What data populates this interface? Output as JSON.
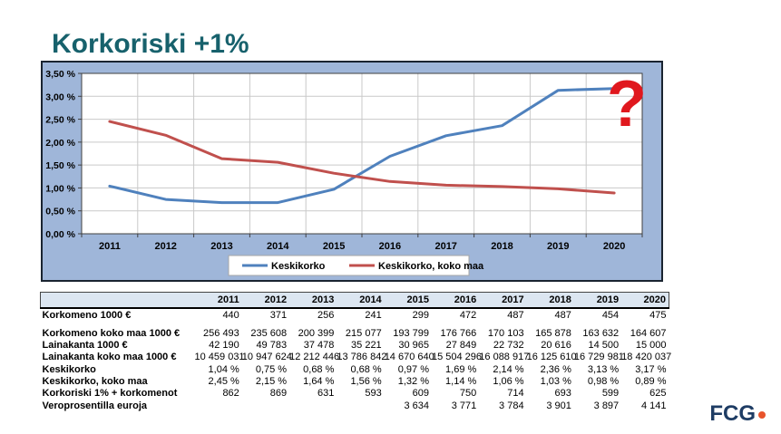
{
  "slide": {
    "title": "Korkoriski +1%",
    "title_color": "#17616C"
  },
  "chart_data": {
    "type": "line",
    "title": "",
    "xlabel": "",
    "ylabel": "",
    "categories": [
      "2011",
      "2012",
      "2013",
      "2014",
      "2015",
      "2016",
      "2017",
      "2018",
      "2019",
      "2020"
    ],
    "series": [
      {
        "name": "Keskikorko",
        "color": "#4F81BD",
        "values": [
          1.04,
          0.75,
          0.68,
          0.68,
          0.97,
          1.69,
          2.14,
          2.36,
          3.13,
          3.17
        ]
      },
      {
        "name": "Keskikorko, koko maa",
        "color": "#C0504D",
        "values": [
          2.45,
          2.15,
          1.64,
          1.56,
          1.32,
          1.14,
          1.06,
          1.03,
          0.98,
          0.89
        ]
      }
    ],
    "ylim": [
      0,
      3.5
    ],
    "ytick_step": 0.5,
    "ytick_labels": [
      "0,00 %",
      "0,50 %",
      "1,00 %",
      "1,50 %",
      "2,00 %",
      "2,50 %",
      "3,00 %",
      "3,50 %"
    ],
    "grid": true,
    "legend_position": "bottom",
    "annotation": {
      "text": "?",
      "color": "#E0181E"
    },
    "colors": {
      "chart_bg": "#9FB6D9",
      "plot_bg": "#FFFFFF",
      "gridline": "#C9C9C9",
      "axis": "#404040",
      "border": "#1A2430",
      "legend_bg": "#FFFFFF",
      "legend_border": "#A6A6A6",
      "text": "#000000"
    }
  },
  "table": {
    "header_fill": "#DCE6F1",
    "col_headers": [
      "2011",
      "2012",
      "2013",
      "2014",
      "2015",
      "2016",
      "2017",
      "2018",
      "2019",
      "2020"
    ],
    "rows": [
      {
        "label": "Korkomeno 1000 €",
        "values": [
          "440",
          "371",
          "256",
          "241",
          "299",
          "472",
          "487",
          "487",
          "454",
          "475"
        ]
      },
      {
        "label": "Korkomeno koko maa 1000 €",
        "values": [
          "256 493",
          "235 608",
          "200 399",
          "215 077",
          "193 799",
          "176 766",
          "170 103",
          "165 878",
          "163 632",
          "164 607"
        ]
      },
      {
        "label": "Lainakanta 1000 €",
        "values": [
          "42 190",
          "49 783",
          "37 478",
          "35 221",
          "30 965",
          "27 849",
          "22 732",
          "20 616",
          "14 500",
          "15 000"
        ]
      },
      {
        "label": "Lainakanta koko maa 1000 €",
        "values": [
          "10 459 031",
          "10 947 624",
          "12 212 446",
          "13 786 842",
          "14 670 640",
          "15 504 296",
          "16 088 917",
          "16 125 610",
          "16 729 981",
          "18 420 037"
        ]
      },
      {
        "label": "Keskikorko",
        "values": [
          "1,04 %",
          "0,75 %",
          "0,68 %",
          "0,68 %",
          "0,97 %",
          "1,69 %",
          "2,14 %",
          "2,36 %",
          "3,13 %",
          "3,17 %"
        ]
      },
      {
        "label": "Keskikorko, koko maa",
        "values": [
          "2,45 %",
          "2,15 %",
          "1,64 %",
          "1,56 %",
          "1,32 %",
          "1,14 %",
          "1,06 %",
          "1,03 %",
          "0,98 %",
          "0,89 %"
        ]
      },
      {
        "label": "Korkoriski 1% + korkomenot",
        "values": [
          "862",
          "869",
          "631",
          "593",
          "609",
          "750",
          "714",
          "693",
          "599",
          "625"
        ]
      },
      {
        "label": "Veroprosentilla euroja",
        "values": [
          "",
          "",
          "",
          "",
          "3 634",
          "3 771",
          "3 784",
          "3 901",
          "3 897",
          "4 141"
        ]
      }
    ]
  },
  "logo": {
    "text": "FCG",
    "text_color": "#1E3C64",
    "dot_color": "#E8542C"
  }
}
